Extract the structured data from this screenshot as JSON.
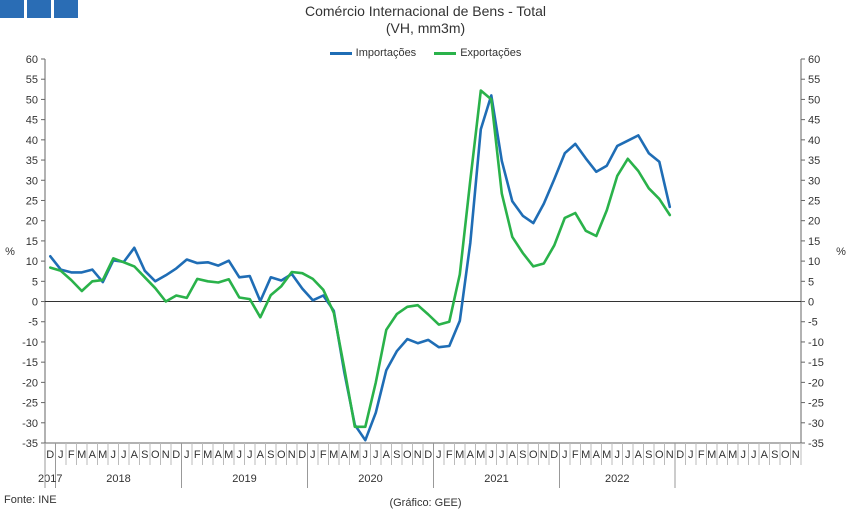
{
  "title_line1": "Comércio Internacional de Bens - Total",
  "title_line2": "(VH, mm3m)",
  "footer_source": "Fonte: INE",
  "footer_credit": "(Gráfico: GEE)",
  "colors": {
    "importacoes": "#1f6db5",
    "exportacoes": "#2ab24a",
    "logo": "#2a6db5"
  },
  "chart_data": {
    "type": "line",
    "title": "Comércio Internacional de Bens - Total",
    "subtitle": "(VH, mm3m)",
    "ylabel": "%",
    "ylabel_right": "%",
    "ylim": [
      -35,
      60
    ],
    "ytick_step": 5,
    "legend_position": "top-center",
    "grid": false,
    "month_labels": [
      "D",
      "J",
      "F",
      "M",
      "A",
      "M",
      "J",
      "J",
      "A",
      "S",
      "O",
      "N",
      "D",
      "J",
      "F",
      "M",
      "A",
      "M",
      "J",
      "J",
      "A",
      "S",
      "O",
      "N",
      "D",
      "J",
      "F",
      "M",
      "A",
      "M",
      "J",
      "J",
      "A",
      "S",
      "O",
      "N",
      "D",
      "J",
      "F",
      "M",
      "A",
      "M",
      "J",
      "J",
      "A",
      "S",
      "O",
      "N",
      "D",
      "J",
      "F",
      "M",
      "A",
      "M",
      "J",
      "J",
      "A",
      "S",
      "O",
      "N",
      "D",
      "J",
      "F",
      "M",
      "A",
      "M",
      "J",
      "J",
      "A",
      "S",
      "O",
      "N"
    ],
    "years": [
      {
        "label": "2017",
        "start": 0,
        "end": 0
      },
      {
        "label": "2018",
        "start": 1,
        "end": 12
      },
      {
        "label": "2019",
        "start": 13,
        "end": 24
      },
      {
        "label": "2020",
        "start": 25,
        "end": 36
      },
      {
        "label": "2021",
        "start": 37,
        "end": 48
      },
      {
        "label": "2022",
        "start": 49,
        "end": 59
      }
    ],
    "series": [
      {
        "name": "Importações",
        "color": "#1f6db5",
        "values": [
          11.2,
          7.9,
          7.2,
          7.2,
          7.9,
          4.8,
          10.2,
          9.8,
          13.3,
          7.6,
          5.0,
          6.5,
          8.2,
          10.4,
          9.5,
          9.7,
          8.9,
          10.1,
          6.0,
          6.3,
          0.1,
          6.0,
          5.2,
          6.8,
          3.2,
          0.3,
          1.5,
          -2.3,
          -17.5,
          -30.5,
          -34.3,
          -27.5,
          -17.0,
          -12.3,
          -9.3,
          -10.3,
          -9.5,
          -11.3,
          -11.0,
          -4.8,
          14.5,
          42.6,
          51.0,
          34.8,
          24.8,
          21.2,
          19.4,
          24.2,
          30.3,
          36.7,
          39.0,
          35.4,
          32.1,
          33.6,
          38.5,
          39.8,
          41.1,
          36.7,
          34.6,
          23.4
        ]
      },
      {
        "name": "Exportações",
        "color": "#2ab24a",
        "values": [
          8.4,
          7.6,
          5.3,
          2.6,
          5.0,
          5.3,
          10.7,
          9.7,
          8.7,
          6.0,
          3.3,
          0.0,
          1.5,
          0.9,
          5.6,
          5.0,
          4.7,
          5.5,
          1.0,
          0.6,
          -3.9,
          1.6,
          3.8,
          7.3,
          7.0,
          5.6,
          2.9,
          -2.8,
          -16.5,
          -31.0,
          -31.0,
          -20.0,
          -7.0,
          -3.1,
          -1.3,
          -0.9,
          -3.2,
          -5.7,
          -5.0,
          6.7,
          30.0,
          52.2,
          50.0,
          26.7,
          16.0,
          12.0,
          8.7,
          9.4,
          13.9,
          20.7,
          21.9,
          17.5,
          16.2,
          22.6,
          31.1,
          35.3,
          32.3,
          28.0,
          25.4,
          21.4
        ]
      }
    ]
  }
}
